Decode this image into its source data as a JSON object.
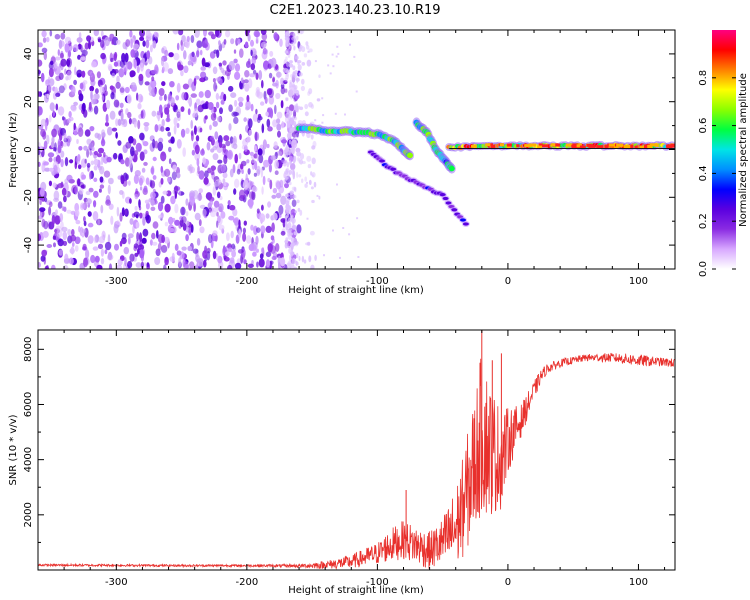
{
  "title": "C2E1.2023.140.23.10.R19",
  "colors": {
    "snr_line": "#e8302c",
    "colormap": [
      "#ffffff",
      "#d8a8ff",
      "#8a2be2",
      "#5a00e0",
      "#0000ff",
      "#0090ff",
      "#00e5e5",
      "#00ff40",
      "#8cff00",
      "#ffff00",
      "#ff8000",
      "#ff0000",
      "#ff0080"
    ]
  },
  "chart_data": [
    {
      "type": "heatmap",
      "title": "",
      "xlabel": "Height of straight line (km)",
      "ylabel": "Frequency (Hz)",
      "xlim": [
        -360,
        128
      ],
      "ylim": [
        -50,
        50
      ],
      "xticks": [
        -300,
        -200,
        -100,
        0,
        100
      ],
      "yticks": [
        -40,
        -20,
        0,
        20,
        40
      ],
      "xtick_labels": [
        "-300",
        "-200",
        "-100",
        "0",
        "100"
      ],
      "ytick_labels": [
        "-40",
        "-20",
        "0",
        "20",
        "40"
      ],
      "colorbar": {
        "label": "Normalized spectral amplitude",
        "range": [
          0,
          1
        ],
        "ticks": [
          0.0,
          0.2,
          0.4,
          0.6,
          0.8
        ],
        "tick_labels": [
          "0.0",
          "0.2",
          "0.4",
          "0.6",
          "0.8"
        ]
      },
      "features": [
        {
          "name": "noise region",
          "x_range": [
            -360,
            -160
          ],
          "y_range": [
            -50,
            50
          ],
          "amplitude": 0.2
        },
        {
          "name": "upper trace",
          "points": [
            [
              -160,
              9
            ],
            [
              -140,
              8
            ],
            [
              -120,
              7.5
            ],
            [
              -100,
              6.5
            ],
            [
              -88,
              4
            ],
            [
              -80,
              0
            ],
            [
              -74,
              -3
            ]
          ],
          "amplitude": 0.55
        },
        {
          "name": "secondary trace",
          "points": [
            [
              -70,
              11
            ],
            [
              -62,
              7
            ],
            [
              -55,
              0
            ],
            [
              -48,
              -5
            ],
            [
              -42,
              -9
            ]
          ],
          "amplitude": 0.5
        },
        {
          "name": "lower branch",
          "points": [
            [
              -105,
              -1
            ],
            [
              -90,
              -8
            ],
            [
              -70,
              -14
            ],
            [
              -50,
              -19
            ],
            [
              -30,
              -33
            ]
          ],
          "amplitude": 0.25
        },
        {
          "name": "stable line",
          "points": [
            [
              -45,
              1
            ],
            [
              0,
              1.5
            ],
            [
              60,
              1.5
            ],
            [
              128,
              1.5
            ]
          ],
          "amplitude": 0.75
        }
      ]
    },
    {
      "type": "line",
      "title": "",
      "xlabel": "Height of straight line (km)",
      "ylabel": "SNR (10 * v/v)",
      "xlim": [
        -360,
        128
      ],
      "ylim": [
        0,
        8700
      ],
      "xticks": [
        -300,
        -200,
        -100,
        0,
        100
      ],
      "yticks": [
        2000,
        4000,
        6000,
        8000
      ],
      "xtick_labels": [
        "-300",
        "-200",
        "-100",
        "0",
        "100"
      ],
      "ytick_labels": [
        "2000",
        "4000",
        "6000",
        "8000"
      ],
      "series": [
        {
          "name": "SNR",
          "x": [
            -360,
            -300,
            -250,
            -200,
            -160,
            -140,
            -120,
            -100,
            -90,
            -80,
            -70,
            -60,
            -50,
            -40,
            -35,
            -30,
            -25,
            -20,
            -15,
            -10,
            -5,
            0,
            10,
            20,
            25,
            30,
            40,
            50,
            60,
            80,
            100,
            115,
            128
          ],
          "values": [
            180,
            170,
            160,
            160,
            150,
            180,
            300,
            600,
            900,
            1100,
            900,
            700,
            1000,
            1500,
            2200,
            3000,
            4000,
            5000,
            4500,
            4200,
            4000,
            4700,
            5400,
            6500,
            7000,
            7300,
            7500,
            7600,
            7700,
            7700,
            7600,
            7550,
            7500
          ],
          "noise_amplitude": [
            40,
            40,
            40,
            40,
            60,
            150,
            250,
            400,
            600,
            700,
            700,
            700,
            900,
            1500,
            1800,
            2200,
            2500,
            3000,
            2600,
            2200,
            1800,
            1200,
            600,
            350,
            250,
            180,
            150,
            130,
            130,
            170,
            220,
            160,
            160
          ],
          "peaks": [
            [
              -78,
              2900
            ],
            [
              -20,
              8700
            ],
            [
              -12,
              7600
            ],
            [
              -5,
              7850
            ]
          ]
        }
      ]
    }
  ]
}
